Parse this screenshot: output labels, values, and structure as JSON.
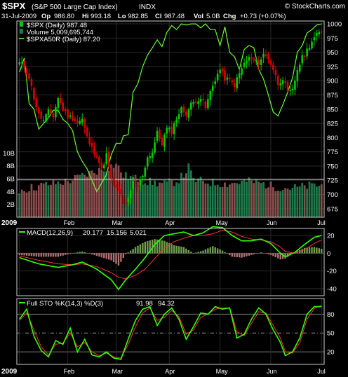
{
  "header": {
    "symbol": "$SPX",
    "name": "(S&P 500 Large Cap Index)",
    "exchange": "INDX",
    "date": "31-Jul-2009",
    "op_label": "Op",
    "op": "986.80",
    "hi_label": "Hi",
    "hi": "993.18",
    "lo_label": "Lo",
    "lo": "982.85",
    "cl_label": "Cl",
    "cl": "987.48",
    "vol_label": "Vol",
    "vol": "5.0B",
    "chg_label": "Chg",
    "chg": "+0.73 (+0.07%)",
    "watermark": "© StockCharts.com"
  },
  "colors": {
    "background": "#000000",
    "up_candle": "#00cc00",
    "down_candle": "#dd0000",
    "ratio_line": "#66ff33",
    "volume_up": "#1f7a4a",
    "volume_down": "#8a4d4d",
    "macd_line": "#33ff00",
    "signal_line": "#ff3333",
    "histogram_up": "#6f9f4f",
    "histogram_down": "#b07070",
    "grid": "#2a2a2a",
    "panel_border": "#cccccc"
  },
  "chart_data": [
    {
      "type": "candlestick",
      "legend": [
        {
          "label": "$SPX (Daily) 987.48",
          "icon": "candle-icon"
        },
        {
          "label": "Volume 5,009,695,744",
          "icon": "volume-bar-icon"
        },
        {
          "label": "$SPXA50R (Daily) 87.20",
          "icon": "line-icon"
        }
      ],
      "price_axis": {
        "min": 660,
        "max": 1005,
        "ticks": [
          675,
          700,
          725,
          750,
          775,
          800,
          825,
          850,
          875,
          900,
          925,
          950,
          975,
          1000
        ]
      },
      "volume_axis": {
        "ticks": [
          "2B",
          "4B",
          "6B",
          "8B",
          "10B"
        ],
        "values": [
          2,
          4,
          6,
          8,
          10
        ],
        "max": 12
      },
      "x_labels": [
        "2009",
        "Feb",
        "Mar",
        "Apr",
        "May",
        "Jun",
        "Jul"
      ],
      "price_anchors": [
        [
          0,
          931
        ],
        [
          2,
          925
        ],
        [
          4,
          906
        ],
        [
          6,
          870
        ],
        [
          8,
          840
        ],
        [
          10,
          830
        ],
        [
          12,
          845
        ],
        [
          14,
          838
        ],
        [
          16,
          870
        ],
        [
          18,
          850
        ],
        [
          20,
          838
        ],
        [
          22,
          835
        ],
        [
          24,
          826
        ],
        [
          26,
          832
        ],
        [
          28,
          800
        ],
        [
          30,
          780
        ],
        [
          32,
          770
        ],
        [
          34,
          742
        ],
        [
          36,
          770
        ],
        [
          38,
          725
        ],
        [
          40,
          710
        ],
        [
          42,
          700
        ],
        [
          43,
          682
        ],
        [
          45,
          690
        ],
        [
          47,
          720
        ],
        [
          49,
          715
        ],
        [
          51,
          735
        ],
        [
          53,
          765
        ],
        [
          55,
          775
        ],
        [
          57,
          808
        ],
        [
          59,
          790
        ],
        [
          61,
          815
        ],
        [
          63,
          811
        ],
        [
          65,
          835
        ],
        [
          67,
          850
        ],
        [
          69,
          842
        ],
        [
          71,
          858
        ],
        [
          73,
          866
        ],
        [
          75,
          870
        ],
        [
          77,
          852
        ],
        [
          79,
          880
        ],
        [
          81,
          903
        ],
        [
          83,
          920
        ],
        [
          85,
          904
        ],
        [
          87,
          900
        ],
        [
          89,
          893
        ],
        [
          91,
          912
        ],
        [
          93,
          930
        ],
        [
          95,
          940
        ],
        [
          97,
          935
        ],
        [
          99,
          932
        ],
        [
          101,
          946
        ],
        [
          103,
          940
        ],
        [
          105,
          920
        ],
        [
          107,
          895
        ],
        [
          109,
          905
        ],
        [
          111,
          878
        ],
        [
          113,
          882
        ],
        [
          115,
          920
        ],
        [
          117,
          940
        ],
        [
          119,
          954
        ],
        [
          121,
          970
        ],
        [
          123,
          980
        ],
        [
          125,
          987
        ]
      ],
      "ratio_anchors": [
        [
          0,
          915
        ],
        [
          2,
          940
        ],
        [
          4,
          860
        ],
        [
          6,
          850
        ],
        [
          8,
          815
        ],
        [
          10,
          825
        ],
        [
          12,
          835
        ],
        [
          14,
          848
        ],
        [
          16,
          848
        ],
        [
          18,
          832
        ],
        [
          20,
          825
        ],
        [
          22,
          812
        ],
        [
          24,
          775
        ],
        [
          26,
          758
        ],
        [
          28,
          745
        ],
        [
          30,
          725
        ],
        [
          32,
          705
        ],
        [
          34,
          720
        ],
        [
          36,
          735
        ],
        [
          38,
          770
        ],
        [
          40,
          790
        ],
        [
          42,
          790
        ],
        [
          43,
          803
        ],
        [
          45,
          805
        ],
        [
          47,
          880
        ],
        [
          49,
          895
        ],
        [
          51,
          925
        ],
        [
          53,
          945
        ],
        [
          55,
          958
        ],
        [
          57,
          972
        ],
        [
          59,
          960
        ],
        [
          61,
          985
        ],
        [
          63,
          997
        ],
        [
          65,
          990
        ],
        [
          67,
          1000
        ],
        [
          69,
          998
        ],
        [
          71,
          1000
        ],
        [
          73,
          1000
        ],
        [
          75,
          993
        ],
        [
          77,
          1000
        ],
        [
          79,
          990
        ],
        [
          81,
          990
        ],
        [
          83,
          962
        ],
        [
          85,
          995
        ],
        [
          87,
          950
        ],
        [
          89,
          942
        ],
        [
          91,
          920
        ],
        [
          93,
          955
        ],
        [
          95,
          962
        ],
        [
          97,
          958
        ],
        [
          99,
          920
        ],
        [
          101,
          903
        ],
        [
          103,
          875
        ],
        [
          105,
          845
        ],
        [
          107,
          838
        ],
        [
          109,
          858
        ],
        [
          111,
          880
        ],
        [
          113,
          905
        ],
        [
          115,
          950
        ],
        [
          117,
          962
        ],
        [
          119,
          984
        ],
        [
          121,
          990
        ],
        [
          123,
          998
        ],
        [
          125,
          1000
        ]
      ],
      "volume_anchors": [
        [
          0,
          4.2
        ],
        [
          10,
          5.0
        ],
        [
          20,
          5.6
        ],
        [
          30,
          7.0
        ],
        [
          35,
          7.5
        ],
        [
          40,
          8.3
        ],
        [
          43,
          6.5
        ],
        [
          48,
          6.0
        ],
        [
          55,
          5.4
        ],
        [
          60,
          5.2
        ],
        [
          65,
          5.6
        ],
        [
          68,
          6.6
        ],
        [
          70,
          7.8
        ],
        [
          72,
          5.8
        ],
        [
          80,
          5.4
        ],
        [
          85,
          5.2
        ],
        [
          90,
          5.4
        ],
        [
          95,
          5.6
        ],
        [
          100,
          5.3
        ],
        [
          105,
          4.8
        ],
        [
          110,
          4.6
        ],
        [
          115,
          4.6
        ],
        [
          120,
          4.9
        ],
        [
          125,
          5.0
        ]
      ]
    },
    {
      "type": "line",
      "label": "MACD(12,26,9)",
      "values_text": {
        "macd": "20.177",
        "signal": "15.156",
        "hist": "5.021"
      },
      "y_axis": {
        "min": -48,
        "max": 28,
        "ticks": [
          20,
          0,
          -20,
          -40
        ]
      },
      "macd_anchors": [
        [
          0,
          -5
        ],
        [
          8,
          -12
        ],
        [
          16,
          -16
        ],
        [
          22,
          -13
        ],
        [
          26,
          -10
        ],
        [
          32,
          -18
        ],
        [
          38,
          -30
        ],
        [
          41,
          -41
        ],
        [
          44,
          -30
        ],
        [
          48,
          -18
        ],
        [
          52,
          -5
        ],
        [
          56,
          10
        ],
        [
          60,
          20
        ],
        [
          64,
          22
        ],
        [
          68,
          24
        ],
        [
          72,
          20
        ],
        [
          76,
          23
        ],
        [
          80,
          30
        ],
        [
          84,
          29
        ],
        [
          88,
          20
        ],
        [
          92,
          14
        ],
        [
          96,
          14
        ],
        [
          100,
          16
        ],
        [
          104,
          11
        ],
        [
          108,
          0
        ],
        [
          110,
          -4
        ],
        [
          114,
          1
        ],
        [
          118,
          10
        ],
        [
          122,
          18
        ],
        [
          125,
          20
        ]
      ],
      "signal_anchors": [
        [
          0,
          -3
        ],
        [
          8,
          -8
        ],
        [
          16,
          -12
        ],
        [
          22,
          -13
        ],
        [
          26,
          -12
        ],
        [
          32,
          -15
        ],
        [
          38,
          -22
        ],
        [
          41,
          -27
        ],
        [
          44,
          -29
        ],
        [
          48,
          -25
        ],
        [
          52,
          -18
        ],
        [
          56,
          -6
        ],
        [
          60,
          6
        ],
        [
          64,
          13
        ],
        [
          68,
          17
        ],
        [
          72,
          20
        ],
        [
          76,
          20
        ],
        [
          80,
          22
        ],
        [
          84,
          26
        ],
        [
          88,
          24
        ],
        [
          92,
          19
        ],
        [
          96,
          16
        ],
        [
          100,
          15
        ],
        [
          104,
          13
        ],
        [
          108,
          7
        ],
        [
          110,
          2
        ],
        [
          114,
          0
        ],
        [
          118,
          4
        ],
        [
          122,
          11
        ],
        [
          125,
          15
        ]
      ]
    },
    {
      "type": "line",
      "label": "Full STO %K(14,3) %D(3)",
      "values_text": {
        "k": "91.98",
        "d": "94.32"
      },
      "y_axis": {
        "min": 0,
        "max": 105,
        "ticks": [
          80,
          50,
          20
        ],
        "dashed_level": 50
      },
      "k_anchors": [
        [
          0,
          72
        ],
        [
          3,
          88
        ],
        [
          6,
          45
        ],
        [
          9,
          22
        ],
        [
          12,
          12
        ],
        [
          15,
          38
        ],
        [
          18,
          32
        ],
        [
          21,
          58
        ],
        [
          24,
          20
        ],
        [
          27,
          40
        ],
        [
          30,
          15
        ],
        [
          33,
          12
        ],
        [
          36,
          20
        ],
        [
          39,
          10
        ],
        [
          42,
          8
        ],
        [
          45,
          40
        ],
        [
          48,
          70
        ],
        [
          51,
          88
        ],
        [
          54,
          92
        ],
        [
          57,
          62
        ],
        [
          60,
          80
        ],
        [
          63,
          90
        ],
        [
          66,
          72
        ],
        [
          69,
          40
        ],
        [
          72,
          60
        ],
        [
          75,
          82
        ],
        [
          78,
          80
        ],
        [
          81,
          92
        ],
        [
          84,
          88
        ],
        [
          87,
          90
        ],
        [
          90,
          42
        ],
        [
          93,
          48
        ],
        [
          96,
          72
        ],
        [
          99,
          90
        ],
        [
          102,
          80
        ],
        [
          105,
          55
        ],
        [
          108,
          35
        ],
        [
          110,
          14
        ],
        [
          113,
          20
        ],
        [
          116,
          42
        ],
        [
          119,
          80
        ],
        [
          122,
          92
        ],
        [
          125,
          92
        ]
      ],
      "d_anchors": [
        [
          0,
          70
        ],
        [
          3,
          82
        ],
        [
          6,
          55
        ],
        [
          9,
          28
        ],
        [
          12,
          15
        ],
        [
          15,
          32
        ],
        [
          18,
          34
        ],
        [
          21,
          50
        ],
        [
          24,
          28
        ],
        [
          27,
          35
        ],
        [
          30,
          20
        ],
        [
          33,
          14
        ],
        [
          36,
          18
        ],
        [
          39,
          12
        ],
        [
          42,
          10
        ],
        [
          45,
          32
        ],
        [
          48,
          60
        ],
        [
          51,
          82
        ],
        [
          54,
          90
        ],
        [
          57,
          70
        ],
        [
          60,
          75
        ],
        [
          63,
          86
        ],
        [
          66,
          76
        ],
        [
          69,
          48
        ],
        [
          72,
          55
        ],
        [
          75,
          75
        ],
        [
          78,
          80
        ],
        [
          81,
          88
        ],
        [
          84,
          90
        ],
        [
          87,
          90
        ],
        [
          90,
          52
        ],
        [
          93,
          46
        ],
        [
          96,
          65
        ],
        [
          99,
          84
        ],
        [
          102,
          82
        ],
        [
          105,
          62
        ],
        [
          108,
          42
        ],
        [
          110,
          20
        ],
        [
          113,
          18
        ],
        [
          116,
          35
        ],
        [
          119,
          72
        ],
        [
          122,
          89
        ],
        [
          125,
          94
        ]
      ]
    }
  ]
}
